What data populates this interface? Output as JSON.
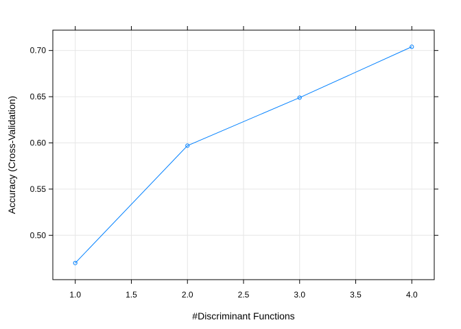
{
  "chart_data": {
    "type": "line",
    "title": "",
    "xlabel": "#Discriminant Functions",
    "ylabel": "Accuracy (Cross-Validation)",
    "x": [
      1,
      2,
      3,
      4
    ],
    "series": [
      {
        "values": [
          0.47,
          0.597,
          0.649,
          0.704
        ]
      }
    ],
    "xlim": [
      0.8,
      4.2
    ],
    "ylim": [
      0.452,
      0.722
    ],
    "x_ticks": [
      1.0,
      1.5,
      2.0,
      2.5,
      3.0,
      3.5,
      4.0
    ],
    "x_tick_labels": [
      "1.0",
      "1.5",
      "2.0",
      "2.5",
      "3.0",
      "3.5",
      "4.0"
    ],
    "y_ticks": [
      0.5,
      0.55,
      0.6,
      0.65,
      0.7
    ],
    "y_tick_labels": [
      "0.50",
      "0.55",
      "0.60",
      "0.65",
      "0.70"
    ],
    "grid": true,
    "line_color": "#0080ff",
    "grid_color": "#e6e6e6",
    "marker": "open-circle"
  }
}
